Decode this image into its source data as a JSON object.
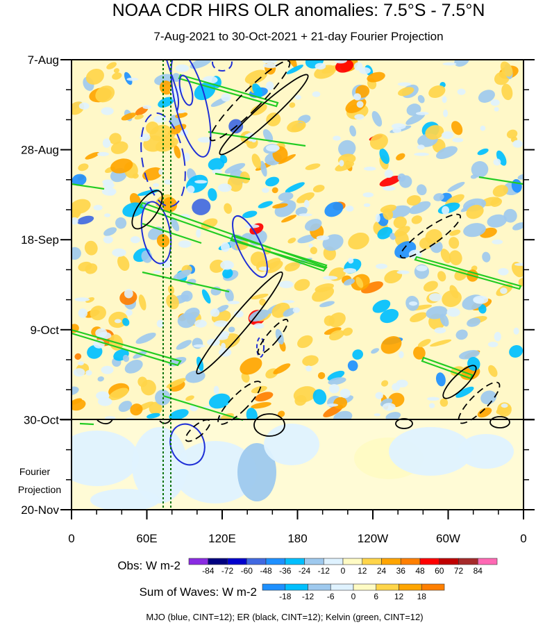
{
  "chart_data": {
    "type": "heatmap",
    "title": "NOAA CDR HIRS OLR anomalies: 7.5°S - 7.5°N",
    "subtitle": "7-Aug-2021 to 30-Oct-2021 + 21-day Fourier Projection",
    "x_axis": {
      "labels": [
        "0",
        "60E",
        "120E",
        "180",
        "120W",
        "60W",
        "0"
      ],
      "positions_lon_east": [
        0,
        60,
        120,
        180,
        240,
        300,
        360
      ],
      "range": [
        0,
        360
      ]
    },
    "y_axis": {
      "labels": [
        "7-Aug",
        "28-Aug",
        "18-Sep",
        "9-Oct",
        "30-Oct",
        "20-Nov"
      ],
      "range": [
        "7-Aug-2021",
        "20-Nov-2021"
      ],
      "reversed": true
    },
    "projection_label": [
      "Fourier",
      "Projection"
    ],
    "observation_end": "30-Oct",
    "colorbars": [
      {
        "label": "Obs: W m-2",
        "ticks": [
          "-84",
          "-72",
          "-60",
          "-48",
          "-36",
          "-24",
          "-12",
          "0",
          "12",
          "24",
          "36",
          "48",
          "60",
          "72",
          "84"
        ],
        "colors": [
          "#8a2be2",
          "#000080",
          "#0000cd",
          "#4169e1",
          "#1e90ff",
          "#00bfff",
          "#9ec9ee",
          "#dff2ff",
          "#fffbc4",
          "#ffd54a",
          "#ffa500",
          "#ff7f00",
          "#ff0000",
          "#c00000",
          "#a52a2a",
          "#ff69b4"
        ]
      },
      {
        "label": "Sum of Waves: W m-2",
        "ticks": [
          "-18",
          "-12",
          "-6",
          "0",
          "6",
          "12",
          "18"
        ],
        "colors": [
          "#1e90ff",
          "#00bfff",
          "#9ec9ee",
          "#dff2ff",
          "#fffbc4",
          "#ffd54a",
          "#ffa500",
          "#ff7f00"
        ]
      }
    ],
    "footnote": "MJO (blue, CINT=12); ER (black, CINT=12); Kelvin (green, CINT=12)",
    "contour_colors": {
      "mjo": "#1f2fd6",
      "er": "#000000",
      "kelvin": "#22cc22"
    },
    "reference_lines_lon": [
      75,
      80
    ]
  }
}
